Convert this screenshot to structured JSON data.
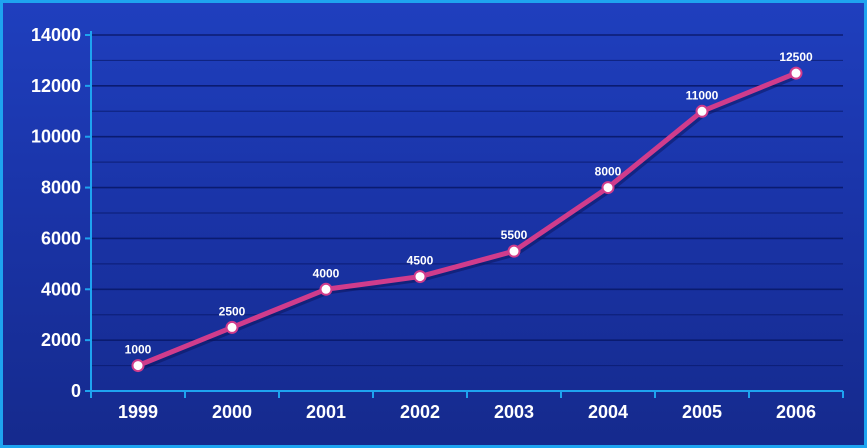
{
  "chart_data": {
    "type": "line",
    "title": "",
    "xlabel": "",
    "ylabel": "",
    "categories": [
      "1999",
      "2000",
      "2001",
      "2002",
      "2003",
      "2004",
      "2005",
      "2006"
    ],
    "series": [
      {
        "values": [
          1000,
          2500,
          4000,
          4500,
          5500,
          8000,
          11000,
          12500
        ],
        "color": "#d03c8c"
      }
    ],
    "data_labels": [
      "1000",
      "2500",
      "4000",
      "4500",
      "5500",
      "8000",
      "11000",
      "12500"
    ],
    "y_ticks": [
      0,
      2000,
      4000,
      6000,
      8000,
      10000,
      12000,
      14000
    ],
    "y_tick_labels": [
      "0",
      "2000",
      "4000",
      "6000",
      "8000",
      "10000",
      "12000",
      "14000"
    ],
    "ylim": [
      0,
      14000
    ],
    "grid": true,
    "legend": "none",
    "colors": {
      "background": "#1a34a8",
      "frame": "#1ea4f0",
      "gridline": "#0a1a6e",
      "axis": "#1ea4f0",
      "line": "#d03c8c",
      "marker_fill": "#ffffff"
    }
  }
}
